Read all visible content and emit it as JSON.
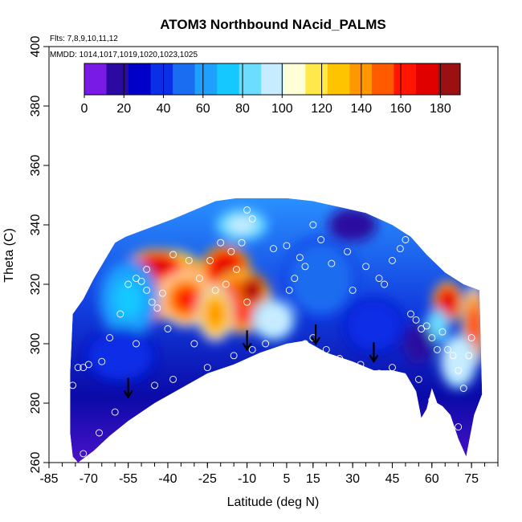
{
  "chart_data": {
    "type": "heatmap",
    "title": "ATOM3 Northbound NAcid_PALMS",
    "annotations": [
      "Flts: 7,8,9,10,11,12",
      "MMDD: 1014,1017,1019,1020,1023,1025"
    ],
    "xlabel": "Latitude (deg N)",
    "ylabel": "Theta (C)",
    "xlim": [
      -85,
      85
    ],
    "ylim": [
      260,
      400
    ],
    "x_ticks": [
      -85,
      -70,
      -55,
      -40,
      -25,
      -10,
      5,
      15,
      30,
      45,
      60,
      75
    ],
    "y_ticks": [
      260,
      280,
      300,
      320,
      340,
      360,
      380,
      400
    ],
    "colorbar": {
      "range": [
        0,
        190
      ],
      "ticks": [
        0,
        20,
        40,
        60,
        80,
        100,
        120,
        140,
        160,
        180
      ],
      "colors": [
        "#7a1ae6",
        "#2a0aa0",
        "#0000c8",
        "#0a2fe6",
        "#1a6cf0",
        "#1ea0ff",
        "#15c8ff",
        "#6cdcff",
        "#c8ecff",
        "#ffffd8",
        "#ffe84a",
        "#ffc400",
        "#ff9800",
        "#ff5a00",
        "#ff1500",
        "#e00000",
        "#9b1010"
      ]
    },
    "top_boundary": [
      [
        -76,
        310
      ],
      [
        -72,
        315
      ],
      [
        -68,
        322
      ],
      [
        -64,
        328
      ],
      [
        -60,
        334
      ],
      [
        -56,
        336
      ],
      [
        -50,
        338
      ],
      [
        -44,
        340
      ],
      [
        -38,
        342
      ],
      [
        -30,
        345
      ],
      [
        -22,
        348
      ],
      [
        -14,
        349
      ],
      [
        -5,
        349
      ],
      [
        5,
        349
      ],
      [
        15,
        348
      ],
      [
        25,
        346
      ],
      [
        35,
        344
      ],
      [
        45,
        340
      ],
      [
        52,
        336
      ],
      [
        58,
        330
      ],
      [
        65,
        324
      ],
      [
        72,
        320
      ],
      [
        78,
        318
      ]
    ],
    "bottom_boundary": [
      [
        79,
        283
      ],
      [
        76,
        276
      ],
      [
        73,
        262
      ],
      [
        70,
        268
      ],
      [
        67,
        276
      ],
      [
        64,
        279
      ],
      [
        62,
        280
      ],
      [
        60,
        285
      ],
      [
        58,
        278
      ],
      [
        56,
        275
      ],
      [
        54,
        284
      ],
      [
        50,
        290
      ],
      [
        45,
        291
      ],
      [
        38,
        291
      ],
      [
        30,
        294
      ],
      [
        20,
        297
      ],
      [
        12,
        301
      ],
      [
        5,
        300
      ],
      [
        -5,
        297
      ],
      [
        -15,
        293
      ],
      [
        -25,
        290
      ],
      [
        -35,
        285
      ],
      [
        -45,
        280
      ],
      [
        -55,
        274
      ],
      [
        -62,
        269
      ],
      [
        -68,
        264
      ],
      [
        -74,
        260
      ],
      [
        -76,
        262
      ],
      [
        -77,
        270
      ],
      [
        -77,
        290
      ]
    ],
    "blobs": [
      {
        "lat": -40,
        "theta": 320,
        "rx": 14,
        "ry": 10,
        "value": 150
      },
      {
        "lat": -44,
        "theta": 326,
        "rx": 10,
        "ry": 5,
        "value": 160
      },
      {
        "lat": -47,
        "theta": 313,
        "rx": 7,
        "ry": 5,
        "value": 165
      },
      {
        "lat": -33,
        "theta": 315,
        "rx": 9,
        "ry": 8,
        "value": 145
      },
      {
        "lat": -18,
        "theta": 325,
        "rx": 8,
        "ry": 7,
        "value": 165
      },
      {
        "lat": -12,
        "theta": 314,
        "rx": 10,
        "ry": 9,
        "value": 155
      },
      {
        "lat": -8,
        "theta": 318,
        "rx": 5,
        "ry": 5,
        "value": 175
      },
      {
        "lat": -22,
        "theta": 310,
        "rx": 6,
        "ry": 8,
        "value": 125
      },
      {
        "lat": -12,
        "theta": 340,
        "rx": 9,
        "ry": 5,
        "value": 85
      },
      {
        "lat": 0,
        "theta": 308,
        "rx": 7,
        "ry": 6,
        "value": 90
      },
      {
        "lat": -55,
        "theta": 315,
        "rx": 10,
        "ry": 12,
        "value": 65
      },
      {
        "lat": -58,
        "theta": 296,
        "rx": 12,
        "ry": 8,
        "value": 35
      },
      {
        "lat": 18,
        "theta": 322,
        "rx": 12,
        "ry": 12,
        "value": 45
      },
      {
        "lat": 30,
        "theta": 340,
        "rx": 8,
        "ry": 5,
        "value": 15
      },
      {
        "lat": 38,
        "theta": 306,
        "rx": 10,
        "ry": 8,
        "value": 40
      },
      {
        "lat": 66,
        "theta": 314,
        "rx": 5,
        "ry": 6,
        "value": 160
      },
      {
        "lat": 76,
        "theta": 306,
        "rx": 4,
        "ry": 12,
        "value": 145
      },
      {
        "lat": 70,
        "theta": 294,
        "rx": 6,
        "ry": 8,
        "value": 90
      },
      {
        "lat": 62,
        "theta": 306,
        "rx": 4,
        "ry": 5,
        "value": 80
      },
      {
        "lat": 55,
        "theta": 300,
        "rx": 5,
        "ry": 6,
        "value": 15
      }
    ],
    "observations": [
      [
        -80,
        296
      ],
      [
        -76,
        286
      ],
      [
        -74,
        292
      ],
      [
        -72,
        292
      ],
      [
        -70,
        293
      ],
      [
        -65,
        294
      ],
      [
        -62,
        302
      ],
      [
        -58,
        310
      ],
      [
        -55,
        320
      ],
      [
        -52,
        322
      ],
      [
        -50,
        321
      ],
      [
        -48,
        318
      ],
      [
        -46,
        314
      ],
      [
        -44,
        312
      ],
      [
        -42,
        317
      ],
      [
        -38,
        330
      ],
      [
        -32,
        328
      ],
      [
        -28,
        322
      ],
      [
        -24,
        328
      ],
      [
        -20,
        334
      ],
      [
        -16,
        331
      ],
      [
        -12,
        334
      ],
      [
        -10,
        345
      ],
      [
        -8,
        342
      ],
      [
        -14,
        325
      ],
      [
        -18,
        320
      ],
      [
        -22,
        318
      ],
      [
        -10,
        314
      ],
      [
        0,
        332
      ],
      [
        5,
        333
      ],
      [
        10,
        329
      ],
      [
        12,
        326
      ],
      [
        15,
        340
      ],
      [
        18,
        335
      ],
      [
        22,
        327
      ],
      [
        28,
        331
      ],
      [
        30,
        318
      ],
      [
        35,
        326
      ],
      [
        40,
        322
      ],
      [
        42,
        320
      ],
      [
        45,
        328
      ],
      [
        48,
        332
      ],
      [
        50,
        335
      ],
      [
        52,
        310
      ],
      [
        54,
        308
      ],
      [
        56,
        305
      ],
      [
        58,
        306
      ],
      [
        60,
        302
      ],
      [
        62,
        298
      ],
      [
        64,
        304
      ],
      [
        66,
        298
      ],
      [
        68,
        296
      ],
      [
        70,
        291
      ],
      [
        72,
        285
      ],
      [
        74,
        296
      ],
      [
        75,
        302
      ],
      [
        12,
        300
      ],
      [
        15,
        302
      ],
      [
        20,
        298
      ],
      [
        25,
        295
      ],
      [
        33,
        293
      ],
      [
        40,
        290
      ],
      [
        45,
        292
      ],
      [
        48,
        287
      ],
      [
        50,
        286
      ],
      [
        55,
        288
      ],
      [
        60,
        281
      ],
      [
        65,
        276
      ],
      [
        70,
        272
      ],
      [
        -3,
        300
      ],
      [
        -8,
        298
      ],
      [
        -15,
        296
      ],
      [
        -25,
        292
      ],
      [
        -38,
        288
      ],
      [
        -45,
        286
      ],
      [
        -60,
        277
      ],
      [
        -66,
        270
      ],
      [
        -72,
        263
      ],
      [
        -78,
        311
      ],
      [
        -30,
        300
      ],
      [
        6,
        318
      ],
      [
        8,
        322
      ],
      [
        -52,
        300
      ],
      [
        -48,
        325
      ],
      [
        -40,
        305
      ]
    ],
    "arrows": [
      [
        -55,
        282
      ],
      [
        -10,
        298
      ],
      [
        16,
        300
      ],
      [
        38,
        294
      ]
    ]
  }
}
